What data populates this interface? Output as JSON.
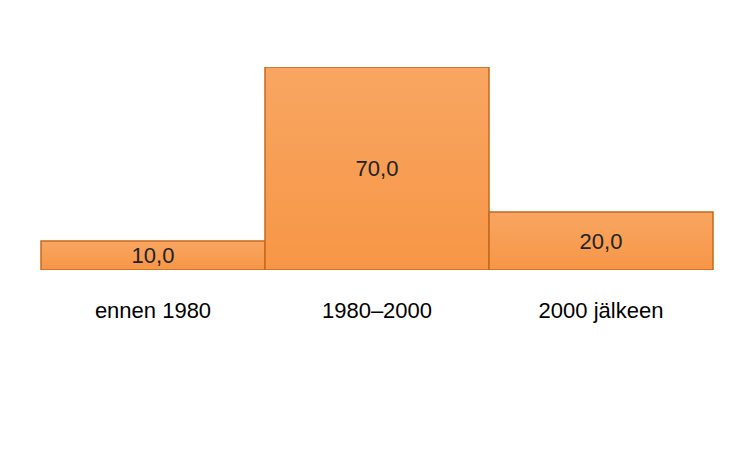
{
  "chart_data": {
    "type": "bar",
    "categories": [
      "ennen 1980",
      "1980–2000",
      "2000 jälkeen"
    ],
    "values": [
      10,
      70,
      20
    ],
    "value_labels": [
      "10,0",
      "70,0",
      "20,0"
    ],
    "color": "#f79646",
    "ylim": [
      0,
      70
    ],
    "data_labels": true,
    "tick_labels": "x",
    "grid": false
  }
}
